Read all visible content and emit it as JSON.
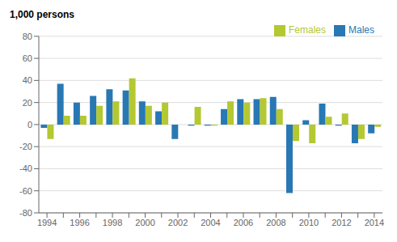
{
  "chart_data": {
    "type": "bar",
    "ylabel": "1,000 persons",
    "categories": [
      "1994",
      null,
      "1996",
      null,
      "1998",
      null,
      "2000",
      null,
      "2002",
      null,
      "2004",
      null,
      "2006",
      null,
      "2008",
      null,
      "2010",
      null,
      "2012",
      null,
      "2014"
    ],
    "series": [
      {
        "name": "Males",
        "color": "#2878b4",
        "values": [
          -3,
          37,
          20,
          26,
          32,
          31,
          21,
          12,
          -13,
          -1,
          -1,
          14,
          23,
          23,
          25,
          -62,
          4,
          19,
          -1,
          -17,
          -8
        ]
      },
      {
        "name": "Females",
        "color": "#b4c832",
        "values": [
          -13,
          8,
          8,
          17,
          21,
          42,
          17,
          20,
          0,
          16,
          -1,
          21,
          20,
          24,
          14,
          -15,
          -17,
          7,
          10,
          -13,
          -2
        ]
      }
    ],
    "ylim": [
      -80,
      80
    ],
    "yticks": [
      -80,
      -60,
      -40,
      -20,
      0,
      20,
      40,
      60,
      80
    ],
    "grid": true,
    "legend": "upper right"
  }
}
